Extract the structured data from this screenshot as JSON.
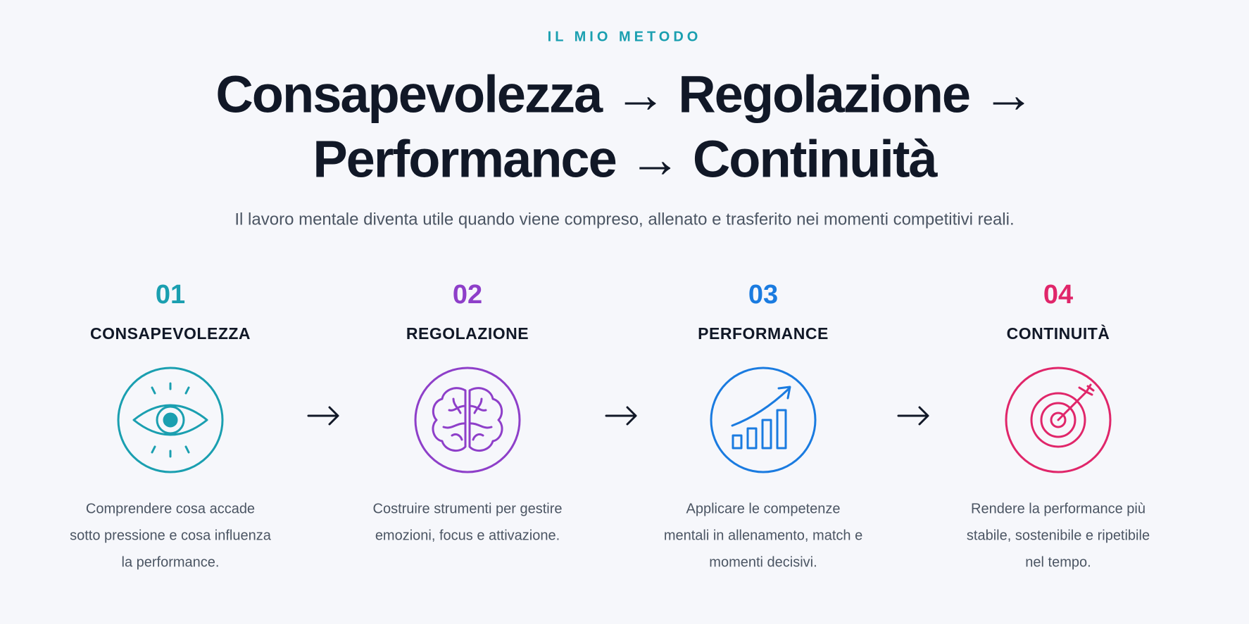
{
  "eyebrow": "IL MIO METODO",
  "title": {
    "lines": [
      "Consapevolezza → Regolazione →",
      "Performance → Continuità"
    ]
  },
  "subtitle": "Il lavoro mentale diventa utile quando viene compreso, allenato e trasferito nei momenti competitivi reali.",
  "steps": [
    {
      "number": "01",
      "title": "CONSAPEVOLEZZA",
      "color": "#1a9fb0",
      "description": [
        "Comprendere cosa accade",
        "sotto pressione e cosa influenza",
        "la performance."
      ]
    },
    {
      "number": "02",
      "title": "REGOLAZIONE",
      "color": "#8e3fc9",
      "description": [
        "Costruire strumenti per gestire",
        "emozioni, focus e attivazione."
      ]
    },
    {
      "number": "03",
      "title": "PERFORMANCE",
      "color": "#1a7be0",
      "description": [
        "Applicare le competenze",
        "mentali in allenamento, match e",
        "momenti decisivi."
      ]
    },
    {
      "number": "04",
      "title": "CONTINUITÀ",
      "color": "#e0266a",
      "description": [
        "Rendere la performance più",
        "stabile, sostenibile e ripetibile",
        "nel tempo."
      ]
    }
  ]
}
